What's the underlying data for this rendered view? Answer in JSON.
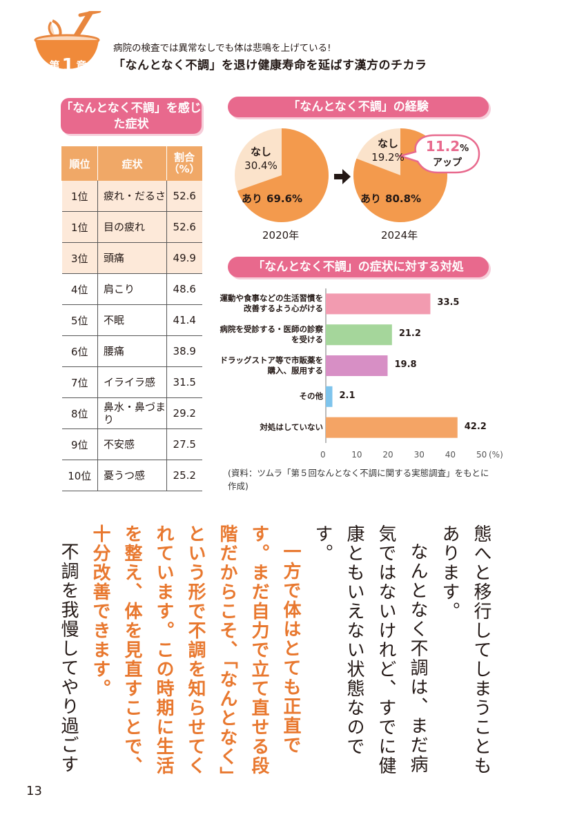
{
  "header": {
    "chapter_prefix": "第",
    "chapter_number": "1",
    "chapter_suffix": "章",
    "subtitle": "病院の検査では異常なしでも体は悲鳴を上げている!",
    "title": "「なんとなく不調」を退け健康寿命を延ばす漢方のチカラ"
  },
  "symptom_table": {
    "title": "「なんとなく不調」を感じた症状",
    "columns": [
      "順位",
      "症状",
      "割合（%）"
    ],
    "rows": [
      {
        "rank": "1位",
        "symptom": "疲れ・だるさ",
        "value": "52.6",
        "highlight": true
      },
      {
        "rank": "1位",
        "symptom": "目の疲れ",
        "value": "52.6",
        "highlight": true
      },
      {
        "rank": "3位",
        "symptom": "頭痛",
        "value": "49.9",
        "highlight": true
      },
      {
        "rank": "4位",
        "symptom": "肩こり",
        "value": "48.6",
        "highlight": false
      },
      {
        "rank": "5位",
        "symptom": "不眠",
        "value": "41.4",
        "highlight": false
      },
      {
        "rank": "6位",
        "symptom": "腰痛",
        "value": "38.9",
        "highlight": false
      },
      {
        "rank": "7位",
        "symptom": "イライラ感",
        "value": "31.5",
        "highlight": false
      },
      {
        "rank": "8位",
        "symptom": "鼻水・鼻づまり",
        "value": "29.2",
        "highlight": false
      },
      {
        "rank": "9位",
        "symptom": "不安感",
        "value": "27.5",
        "highlight": false
      },
      {
        "rank": "10位",
        "symptom": "憂うつ感",
        "value": "25.2",
        "highlight": false
      }
    ]
  },
  "chart_data": [
    {
      "type": "pie",
      "title": "「なんとなく不調」の経験",
      "charts": [
        {
          "year": "2020年",
          "slices": [
            {
              "label": "あり",
              "value": 69.6,
              "text": "69.6%"
            },
            {
              "label": "なし",
              "value": 30.4,
              "text": "30.4%"
            }
          ]
        },
        {
          "year": "2024年",
          "slices": [
            {
              "label": "あり",
              "value": 80.8,
              "text": "80.8%"
            },
            {
              "label": "なし",
              "value": 19.2,
              "text": "19.2%"
            }
          ]
        }
      ],
      "callout": {
        "value": "11.2",
        "unit": "%",
        "text": "アップ"
      }
    },
    {
      "type": "bar",
      "orientation": "horizontal",
      "title": "「なんとなく不調」の症状に対する対処",
      "categories": [
        "運動や食事などの生活習慣を改善するよう心がける",
        "病院を受診する・医師の診察を受ける",
        "ドラッグストア等で市販薬を購入、服用する",
        "その他",
        "対処はしていない"
      ],
      "values": [
        33.5,
        21.2,
        19.8,
        2.1,
        42.2
      ],
      "value_labels": [
        "33.5",
        "21.2",
        "19.8",
        "2.1",
        "42.2"
      ],
      "colors": [
        "#f29bb0",
        "#a5d69b",
        "#d78fc5",
        "#7ec4ec",
        "#f4a465"
      ],
      "xlim": [
        0,
        50
      ],
      "xticks": [
        "0",
        "10",
        "20",
        "30",
        "40",
        "50"
      ],
      "xunit": "(%)",
      "source": "(資料：ツムラ「第５回なんとなく不調に関する実態調査」をもとに作成)"
    }
  ],
  "colors": {
    "accent": "#e8698d",
    "orange": "#f0a867",
    "pie_main": "#f39a4d",
    "pie_sub": "#fbe3cb"
  },
  "body": {
    "p1": "態へと移行してしまうこともあります。",
    "p2": "なんとなく不調は、まだ病気ではないけれど、すでに健康ともいえない状態なのです。",
    "p3": "一方で体はとても正直です。まだ自力で立て直せる段階だからこそ、「なんとなく」という形で不調を知らせてくれています。この時期に生活を整え、体を見直すことで、十分改善できます。",
    "p4": "不調を我慢してやり過ごすのではなく、きちんと向き合い、整えていく。そこから本当の意味での健康づくりが始まります。"
  },
  "page_number": "13"
}
